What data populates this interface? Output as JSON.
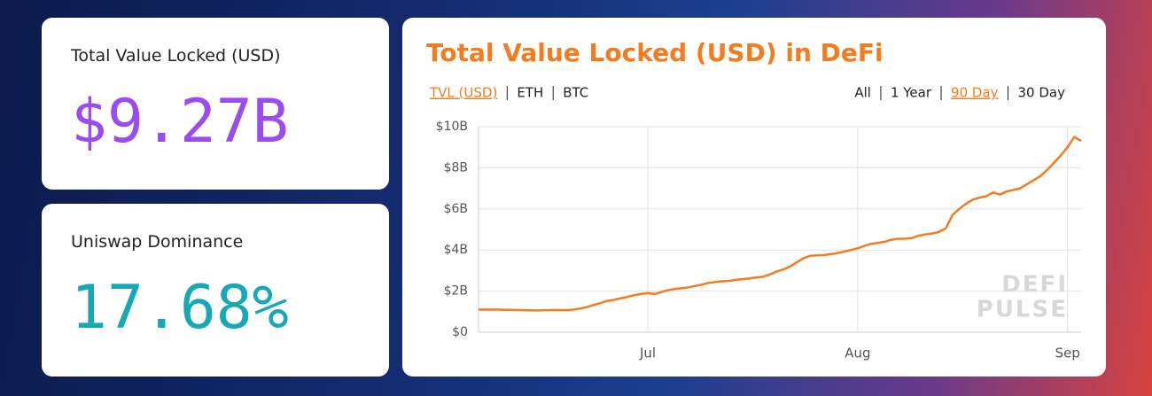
{
  "cards": [
    {
      "label": "Total Value Locked (USD)",
      "value": "$9.27B",
      "color": "#9b4cf0"
    },
    {
      "label": "Uniswap Dominance",
      "value": "17.68%",
      "color": "#17a9b3"
    }
  ],
  "chart_data": {
    "type": "line",
    "title": "Total Value Locked (USD) in DeFi",
    "metric_tabs": [
      {
        "label": "TVL (USD)",
        "active": true
      },
      {
        "label": "ETH",
        "active": false
      },
      {
        "label": "BTC",
        "active": false
      }
    ],
    "range_tabs": [
      {
        "label": "All",
        "active": false
      },
      {
        "label": "1 Year",
        "active": false
      },
      {
        "label": "90 Day",
        "active": true
      },
      {
        "label": "30 Day",
        "active": false
      }
    ],
    "watermark": [
      "DEFI",
      "PULSE"
    ],
    "categories": [
      null,
      null,
      null,
      null,
      null,
      null,
      null,
      null,
      null,
      null,
      null,
      null,
      null,
      null,
      null,
      null,
      null,
      null,
      null,
      null,
      null,
      null,
      null,
      null,
      null,
      "Jul",
      null,
      null,
      null,
      null,
      null,
      null,
      null,
      null,
      null,
      null,
      null,
      null,
      null,
      null,
      null,
      null,
      null,
      null,
      null,
      null,
      null,
      null,
      null,
      null,
      null,
      null,
      null,
      null,
      null,
      null,
      "Aug",
      null,
      null,
      null,
      null,
      null,
      null,
      null,
      null,
      null,
      null,
      null,
      null,
      null,
      null,
      null,
      null,
      null,
      null,
      null,
      null,
      null,
      null,
      null,
      null,
      null,
      null,
      null,
      null,
      null,
      null,
      "Sep",
      null,
      null
    ],
    "series": [
      {
        "name": "TVL (USD)",
        "color": "#f47c20",
        "values": [
          1.1,
          1.1,
          1.1,
          1.1,
          1.09,
          1.09,
          1.08,
          1.07,
          1.06,
          1.06,
          1.07,
          1.08,
          1.08,
          1.07,
          1.1,
          1.15,
          1.22,
          1.32,
          1.42,
          1.52,
          1.58,
          1.65,
          1.72,
          1.8,
          1.86,
          1.9,
          1.86,
          1.95,
          2.05,
          2.1,
          2.14,
          2.18,
          2.25,
          2.32,
          2.4,
          2.44,
          2.48,
          2.5,
          2.55,
          2.58,
          2.62,
          2.66,
          2.7,
          2.8,
          2.95,
          3.05,
          3.2,
          3.4,
          3.6,
          3.72,
          3.74,
          3.75,
          3.8,
          3.85,
          3.92,
          4.0,
          4.08,
          4.2,
          4.3,
          4.35,
          4.4,
          4.5,
          4.55,
          4.55,
          4.58,
          4.7,
          4.76,
          4.8,
          4.88,
          5.05,
          5.7,
          6.0,
          6.25,
          6.45,
          6.55,
          6.62,
          6.8,
          6.7,
          6.85,
          6.92,
          7.0,
          7.2,
          7.4,
          7.6,
          7.9,
          8.25,
          8.6,
          9.0,
          9.5,
          9.3
        ]
      }
    ],
    "ylim": [
      0,
      10
    ],
    "yticks": [
      {
        "value": 0,
        "label": "$0"
      },
      {
        "value": 2,
        "label": "$2B"
      },
      {
        "value": 4,
        "label": "$4B"
      },
      {
        "value": 6,
        "label": "$6B"
      },
      {
        "value": 8,
        "label": "$8B"
      },
      {
        "value": 10,
        "label": "$10B"
      }
    ],
    "grid": true,
    "title_color": "#f47c20"
  }
}
